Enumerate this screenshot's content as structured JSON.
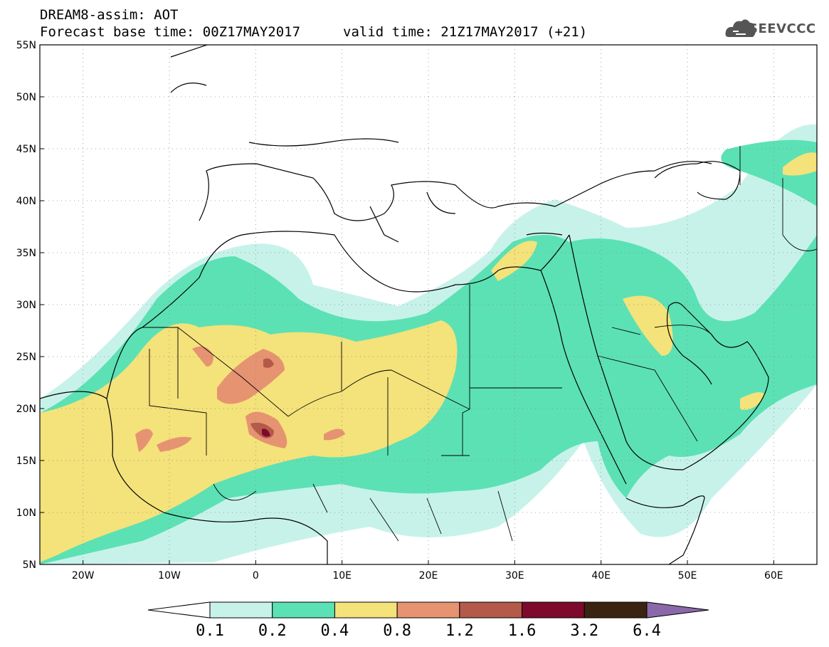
{
  "header": {
    "line1": "DREAM8-assim: AOT",
    "line2": "Forecast base time: 00Z17MAY2017",
    "valid": "valid time: 21Z17MAY2017 (+21)"
  },
  "logo": {
    "text": "SEEVCCC",
    "icon": "cloud-icon"
  },
  "map": {
    "lon_range": [
      -25,
      65
    ],
    "lat_range": [
      5,
      55
    ],
    "lat_ticks": [
      "55N",
      "50N",
      "45N",
      "40N",
      "35N",
      "30N",
      "25N",
      "20N",
      "15N",
      "10N",
      "5N"
    ],
    "lat_values": [
      55,
      50,
      45,
      40,
      35,
      30,
      25,
      20,
      15,
      10,
      5
    ],
    "lon_ticks": [
      "20W",
      "10W",
      "0",
      "10E",
      "20E",
      "30E",
      "40E",
      "50E",
      "60E"
    ],
    "lon_values": [
      -20,
      -10,
      0,
      10,
      20,
      30,
      40,
      50,
      60
    ],
    "grid": true
  },
  "colorbar": {
    "levels": [
      "0.1",
      "0.2",
      "0.4",
      "0.8",
      "1.2",
      "1.6",
      "3.2",
      "6.4"
    ],
    "colors": [
      "#ffffff",
      "#c7f2ea",
      "#5ce1b4",
      "#f4e27a",
      "#e69371",
      "#b35a4a",
      "#7d0a2d",
      "#3b2312",
      "#8a69aa"
    ]
  }
}
